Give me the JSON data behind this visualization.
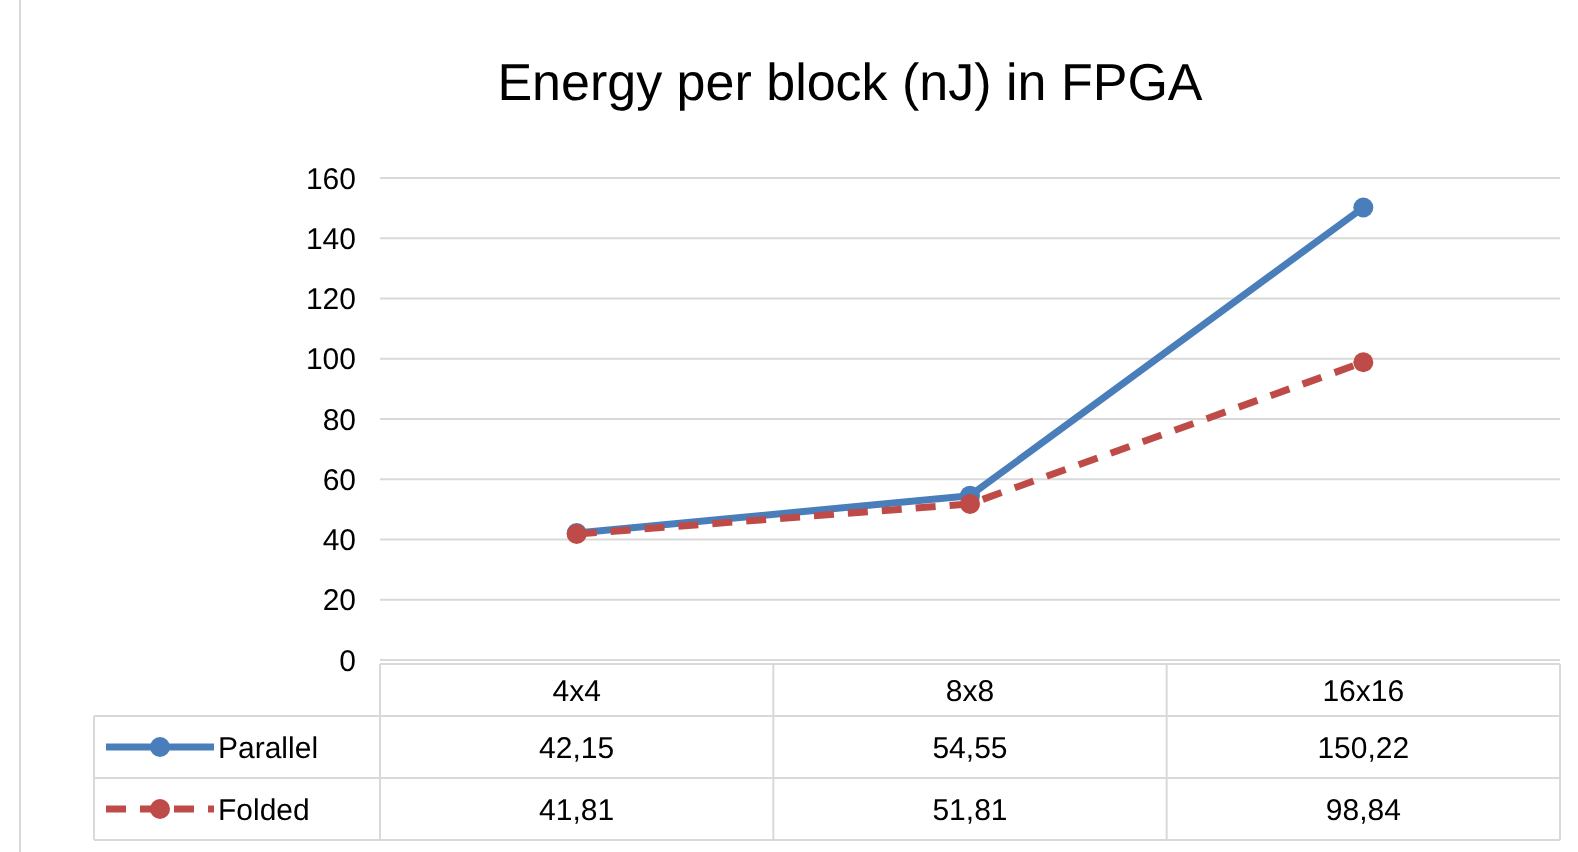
{
  "chart_data": {
    "type": "line",
    "title": "Energy per block (nJ) in FPGA",
    "categories": [
      "4x4",
      "8x8",
      "16x16"
    ],
    "series": [
      {
        "name": "Parallel",
        "color": "#4a7ebb",
        "line_style": "solid",
        "values": [
          42.15,
          54.55,
          150.22
        ],
        "value_labels": [
          "42,15",
          "54,55",
          "150,22"
        ]
      },
      {
        "name": "Folded",
        "color": "#be4b48",
        "line_style": "dashed",
        "values": [
          41.81,
          51.81,
          98.84
        ],
        "value_labels": [
          "41,81",
          "51,81",
          "98,84"
        ]
      }
    ],
    "ylim": [
      0,
      160
    ],
    "yticks": [
      0,
      20,
      40,
      60,
      80,
      100,
      120,
      140,
      160
    ],
    "grid": "y",
    "marker": "circle",
    "legend": "bottom"
  }
}
